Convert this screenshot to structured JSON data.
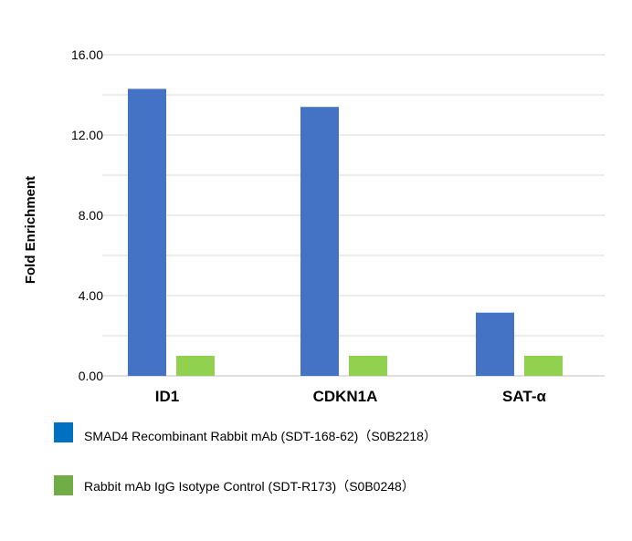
{
  "chart_data": {
    "type": "bar",
    "categories": [
      "ID1",
      "CDKN1A",
      "SAT-α"
    ],
    "series": [
      {
        "name": "SMAD4 Recombinant Rabbit mAb (SDT-168-62)（S0B2218）",
        "values": [
          14.3,
          13.4,
          3.15
        ],
        "color": "#4472c4"
      },
      {
        "name": "Rabbit mAb IgG Isotype Control (SDT-R173)（S0B0248）",
        "values": [
          1.0,
          1.0,
          1.0
        ],
        "color": "#92d050"
      }
    ],
    "legend_swatch_colors": [
      "#0070c0",
      "#70ad47"
    ],
    "ylabel": "Fold Enrichment",
    "ylim": [
      0,
      16
    ],
    "yticks": [
      "0.00",
      "4.00",
      "8.00",
      "12.00",
      "16.00"
    ],
    "grid": true,
    "gridline_color": "#d9d9d9",
    "legend_position": "bottom"
  }
}
